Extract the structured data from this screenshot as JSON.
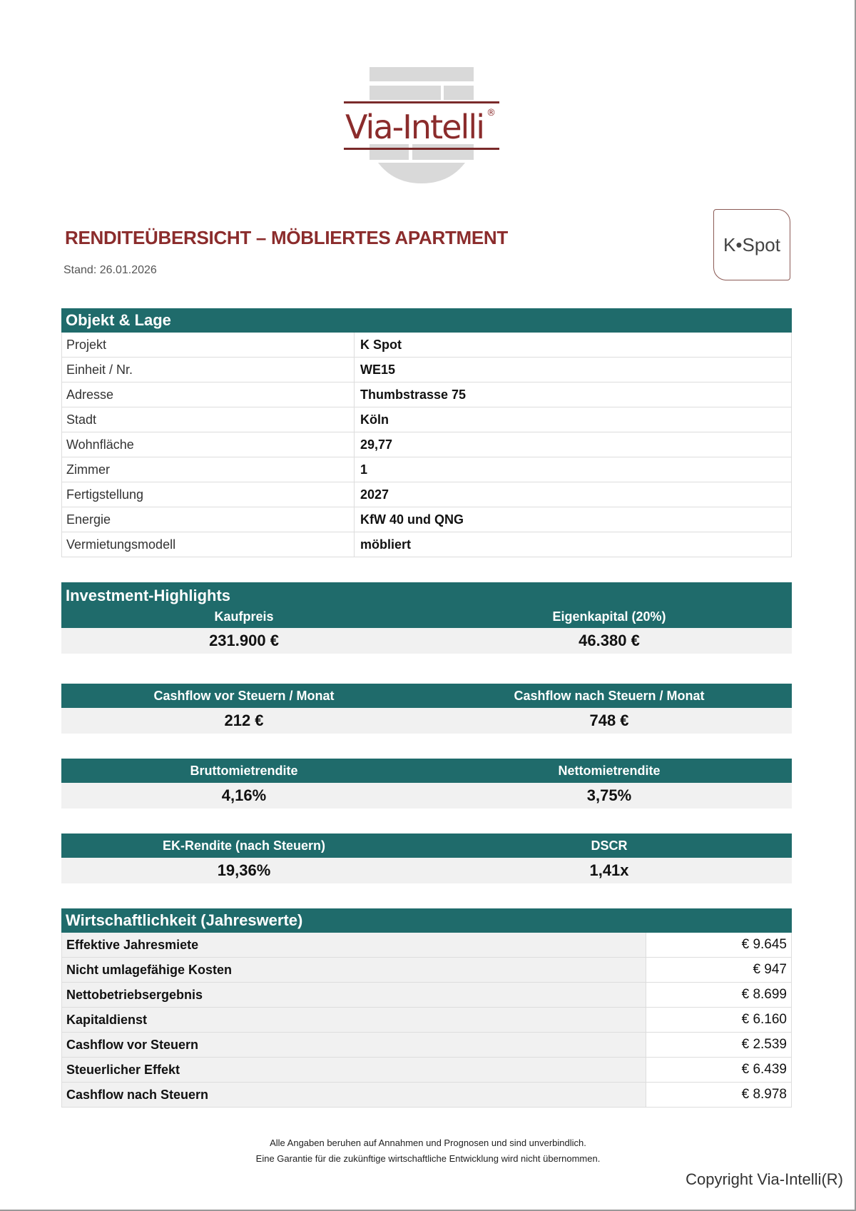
{
  "logo": {
    "text": "Via-Intelli",
    "mark": "®"
  },
  "header": {
    "title": "RENDITEÜBERSICHT – MÖBLIERTES APARTMENT",
    "stand": "Stand: 26.01.2026",
    "project_logo": "K•Spot"
  },
  "objekt": {
    "title": "Objekt & Lage",
    "rows": [
      {
        "label": "Projekt",
        "value": "K Spot"
      },
      {
        "label": "Einheit / Nr.",
        "value": "WE15"
      },
      {
        "label": "Adresse",
        "value": "Thumbstrasse 75"
      },
      {
        "label": "Stadt",
        "value": "Köln"
      },
      {
        "label": "Wohnfläche",
        "value": "29,77"
      },
      {
        "label": "Zimmer",
        "value": "1"
      },
      {
        "label": "Fertigstellung",
        "value": "2027"
      },
      {
        "label": "Energie",
        "value": "KfW 40 und QNG"
      },
      {
        "label": "Vermietungsmodell",
        "value": "möbliert"
      }
    ]
  },
  "highlights": {
    "title": "Investment-Highlights",
    "pairs": [
      [
        {
          "label": "Kaufpreis",
          "value": "231.900 €"
        },
        {
          "label": "Eigenkapital (20%)",
          "value": "46.380 €"
        }
      ],
      [
        {
          "label": "Cashflow vor Steuern / Monat",
          "value": "212 €"
        },
        {
          "label": "Cashflow nach Steuern / Monat",
          "value": "748 €"
        }
      ],
      [
        {
          "label": "Bruttomietrendite",
          "value": "4,16%"
        },
        {
          "label": "Nettomietrendite",
          "value": "3,75%"
        }
      ],
      [
        {
          "label": "EK-Rendite (nach Steuern)",
          "value": "19,36%"
        },
        {
          "label": "DSCR",
          "value": "1,41x"
        }
      ]
    ]
  },
  "wirtschaft": {
    "title": "Wirtschaftlichkeit (Jahreswerte)",
    "rows": [
      {
        "label": "Effektive Jahresmiete",
        "value": "€ 9.645"
      },
      {
        "label": "Nicht umlagefähige Kosten",
        "value": "€ 947"
      },
      {
        "label": "Nettobetriebsergebnis",
        "value": "€ 8.699"
      },
      {
        "label": "Kapitaldienst",
        "value": "€ 6.160"
      },
      {
        "label": "Cashflow vor Steuern",
        "value": "€ 2.539"
      },
      {
        "label": "Steuerlicher Effekt",
        "value": "€ 6.439"
      },
      {
        "label": "Cashflow nach Steuern",
        "value": "€ 8.978"
      }
    ]
  },
  "footer": {
    "line1": "Alle Angaben beruhen auf Annahmen und Prognosen und sind unverbindlich.",
    "line2": "Eine Garantie für die zukünftige wirtschaftliche Entwicklung wird nicht übernommen.",
    "copyright": "Copyright Via-Intelli(R)"
  },
  "colors": {
    "teal": "#1f6b6b",
    "brand_red": "#8b2c2c"
  }
}
